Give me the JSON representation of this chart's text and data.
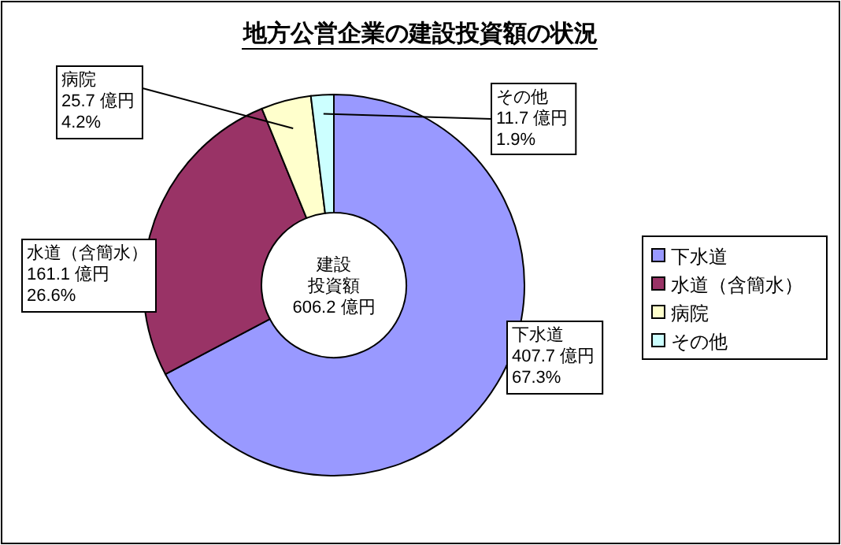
{
  "chart_data": {
    "type": "donut",
    "title": "地方公営企業の建設投資額の状況",
    "categories": [
      "下水道",
      "水道（含簡水）",
      "病院",
      "その他"
    ],
    "values": [
      407.7,
      161.1,
      25.7,
      11.7
    ],
    "colors": [
      "#9999ff",
      "#993366",
      "#ffffcc",
      "#ccffff"
    ],
    "value_labels": [
      "407.7 億円\n67.3%",
      "161.1 億円\n26.6%",
      "25.7 億円\n4.2%",
      "11.7 億円\n1.9%"
    ],
    "annotations": [
      "建設",
      "投資額",
      "606.2 億円"
    ],
    "legend": "right"
  }
}
